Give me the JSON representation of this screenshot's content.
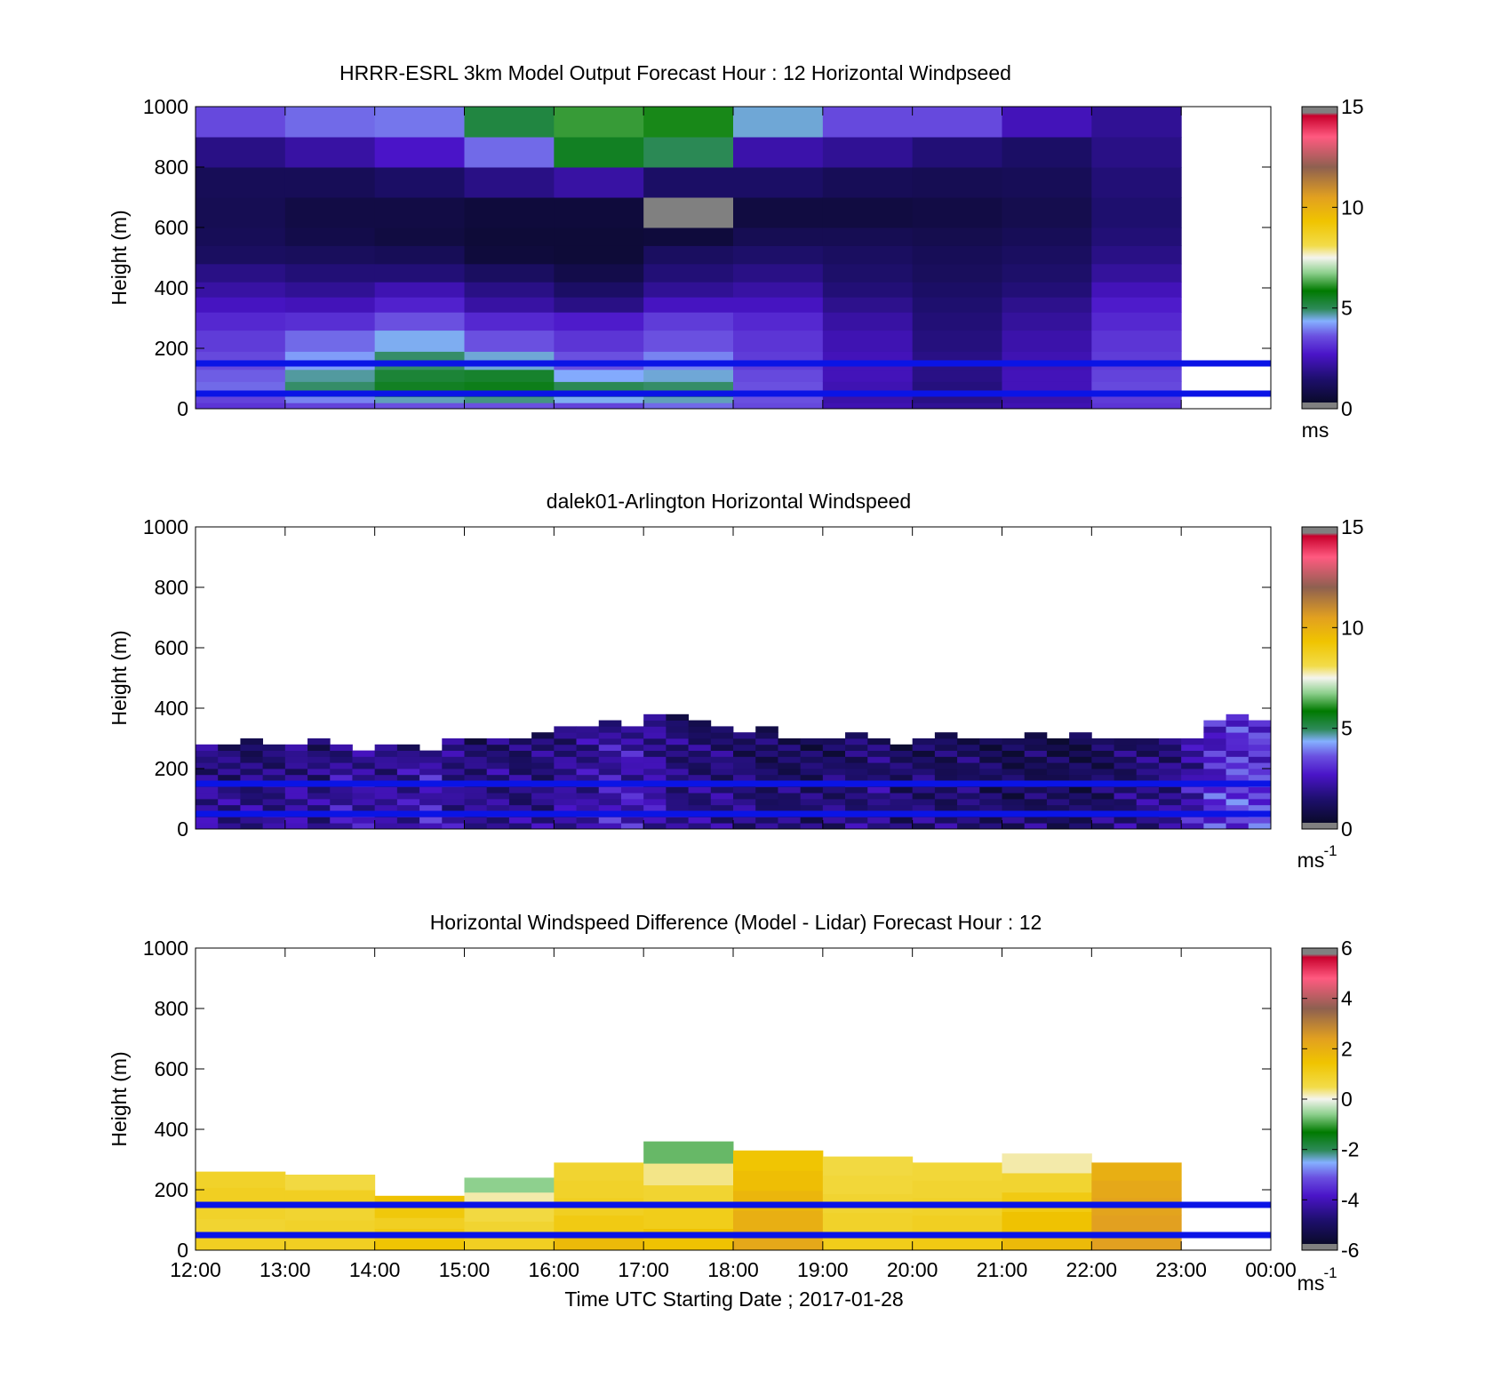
{
  "chart_data": [
    {
      "type": "heatmap",
      "title": "HRRR-ESRL 3km Model Output   Forecast Hour : 12 Horizontal Windpseed",
      "ylabel": "Height (m)",
      "xlabel": "",
      "ylim": [
        0,
        1000
      ],
      "yticks": [
        "1000",
        "800",
        "600",
        "400",
        "200",
        "0"
      ],
      "xlim": [
        "12:00",
        "00:00"
      ],
      "grid": false,
      "colorbar": {
        "min": 0,
        "max": 15,
        "ticks": [
          "15",
          "10",
          "5",
          "0"
        ],
        "unit": "ms",
        "unit_sup": ""
      },
      "reference_lines_m": [
        150,
        50
      ],
      "series": [
        {
          "time": "12:00",
          "bottom_m": [
            0,
            20,
            40,
            60,
            90,
            130,
            190,
            260,
            320,
            370,
            420,
            480,
            540,
            600,
            700,
            800,
            900
          ],
          "values": [
            3.2,
            3.4,
            3.6,
            3.8,
            3.7,
            3.5,
            3.3,
            3.0,
            2.6,
            2.2,
            1.8,
            1.2,
            1.0,
            0.9,
            1.0,
            1.8,
            3.5
          ]
        },
        {
          "time": "13:00",
          "bottom_m": [
            0,
            20,
            40,
            60,
            90,
            130,
            190,
            260,
            320,
            370,
            420,
            480,
            540,
            600,
            700,
            800,
            900
          ],
          "values": [
            3.4,
            4.0,
            4.6,
            4.9,
            4.7,
            4.2,
            3.8,
            3.1,
            2.5,
            2.0,
            1.6,
            1.1,
            0.7,
            0.6,
            1.0,
            2.2,
            3.8
          ]
        },
        {
          "time": "14:00",
          "bottom_m": [
            0,
            20,
            40,
            60,
            90,
            130,
            190,
            260,
            320,
            370,
            420,
            480,
            540,
            600,
            700,
            800,
            900
          ],
          "values": [
            3.6,
            4.6,
            5.2,
            5.5,
            5.3,
            4.9,
            4.4,
            3.6,
            2.9,
            2.4,
            1.6,
            1.0,
            0.5,
            0.6,
            1.3,
            2.7,
            3.9
          ]
        },
        {
          "time": "15:00",
          "bottom_m": [
            0,
            20,
            40,
            60,
            90,
            130,
            190,
            260,
            320,
            370,
            420,
            480,
            540,
            600,
            700,
            800,
            900
          ],
          "values": [
            3.6,
            4.8,
            5.3,
            5.6,
            5.4,
            4.5,
            3.6,
            3.0,
            2.2,
            1.8,
            1.2,
            0.4,
            0.3,
            0.4,
            1.8,
            3.8,
            5.2
          ]
        },
        {
          "time": "16:00",
          "bottom_m": [
            0,
            20,
            40,
            60,
            90,
            130,
            190,
            260,
            320,
            370,
            420,
            480,
            540,
            600,
            700,
            800,
            900
          ],
          "values": [
            3.4,
            4.4,
            4.8,
            5.0,
            4.3,
            3.6,
            3.2,
            2.8,
            1.8,
            1.3,
            0.7,
            0.3,
            0.3,
            0.4,
            2.2,
            5.5,
            6.2
          ]
        },
        {
          "time": "17:00",
          "bottom_m": [
            0,
            20,
            40,
            60,
            90,
            130,
            190,
            260,
            320,
            370,
            420,
            480,
            540,
            600,
            700,
            800,
            900
          ],
          "values": [
            3.8,
            4.6,
            5.0,
            4.9,
            4.5,
            4.0,
            3.6,
            3.3,
            2.6,
            2.0,
            1.6,
            1.2,
            0.4,
            15.8,
            1.3,
            5.0,
            6.0
          ]
        },
        {
          "time": "18:00",
          "bottom_m": [
            0,
            20,
            40,
            60,
            90,
            130,
            190,
            260,
            320,
            370,
            420,
            480,
            540,
            600,
            700,
            800,
            900
          ],
          "values": [
            3.5,
            3.6,
            3.7,
            3.6,
            3.5,
            3.3,
            3.2,
            3.0,
            2.6,
            2.2,
            1.8,
            1.4,
            0.9,
            0.5,
            1.3,
            2.3,
            4.5
          ]
        },
        {
          "time": "19:00",
          "bottom_m": [
            0,
            20,
            40,
            60,
            90,
            130,
            190,
            260,
            320,
            370,
            420,
            480,
            540,
            600,
            700,
            800,
            900
          ],
          "values": [
            2.4,
            2.3,
            2.3,
            2.4,
            2.5,
            2.5,
            2.4,
            2.2,
            1.9,
            1.6,
            1.4,
            1.2,
            0.9,
            0.5,
            1.0,
            2.0,
            3.5
          ]
        },
        {
          "time": "20:00",
          "bottom_m": [
            0,
            20,
            40,
            60,
            90,
            130,
            190,
            260,
            320,
            370,
            420,
            480,
            540,
            600,
            700,
            800,
            900
          ],
          "values": [
            2.0,
            1.8,
            1.7,
            1.7,
            1.8,
            1.8,
            1.7,
            1.6,
            1.5,
            1.3,
            1.1,
            1.0,
            0.8,
            0.6,
            0.9,
            1.6,
            3.5
          ]
        },
        {
          "time": "21:00",
          "bottom_m": [
            0,
            20,
            40,
            60,
            90,
            130,
            190,
            260,
            320,
            370,
            420,
            480,
            540,
            600,
            700,
            800,
            900
          ],
          "values": [
            2.4,
            2.3,
            2.4,
            2.5,
            2.5,
            2.4,
            2.3,
            2.1,
            1.9,
            1.6,
            1.4,
            1.2,
            1.0,
            0.8,
            1.0,
            1.3,
            2.5
          ]
        },
        {
          "time": "22:00",
          "bottom_m": [
            0,
            20,
            40,
            60,
            90,
            130,
            190,
            260,
            320,
            370,
            420,
            480,
            540,
            600,
            700,
            800,
            900
          ],
          "values": [
            3.2,
            3.3,
            3.4,
            3.5,
            3.4,
            3.3,
            3.2,
            3.0,
            2.8,
            2.5,
            2.1,
            1.8,
            1.6,
            1.5,
            1.6,
            1.8,
            2.0
          ]
        }
      ]
    },
    {
      "type": "heatmap",
      "title": "dalek01-Arlington  Horizontal Windspeed",
      "ylabel": "Height (m)",
      "xlabel": "",
      "ylim": [
        0,
        1000
      ],
      "yticks": [
        "1000",
        "800",
        "600",
        "400",
        "200",
        "0"
      ],
      "xlim": [
        "12:00",
        "00:00"
      ],
      "grid": false,
      "colorbar": {
        "min": 0,
        "max": 15,
        "ticks": [
          "15",
          "10",
          "5",
          "0"
        ],
        "unit": "ms",
        "unit_sup": "-1"
      },
      "reference_lines_m": [
        150,
        50
      ],
      "time_step_minutes": 15,
      "bin_size_m": 20,
      "top_m": [
        280,
        280,
        300,
        280,
        270,
        290,
        270,
        260,
        280,
        270,
        250,
        290,
        300,
        300,
        300,
        310,
        330,
        330,
        360,
        340,
        370,
        380,
        360,
        340,
        320,
        330,
        300,
        300,
        300,
        310,
        300,
        280,
        290,
        310,
        300,
        290,
        300,
        320,
        300,
        320,
        300,
        300,
        300,
        300,
        300,
        360,
        370,
        360
      ],
      "mean_speed": [
        2.2,
        2.0,
        1.8,
        2.1,
        2.3,
        2.0,
        2.4,
        2.6,
        2.2,
        2.4,
        2.8,
        2.3,
        1.9,
        2.1,
        1.8,
        2.0,
        2.2,
        2.4,
        2.6,
        2.8,
        2.4,
        2.0,
        1.8,
        2.0,
        1.8,
        1.6,
        1.5,
        1.6,
        1.7,
        1.8,
        1.9,
        1.6,
        1.7,
        1.5,
        1.6,
        1.5,
        1.3,
        1.4,
        1.2,
        1.3,
        1.5,
        1.7,
        1.9,
        2.1,
        2.6,
        3.2,
        3.5,
        3.6
      ]
    },
    {
      "type": "heatmap",
      "title": "Horizontal Windspeed Difference (Model - Lidar) Forecast Hour : 12",
      "ylabel": "Height (m)",
      "xlabel": "Time UTC  Starting Date ; 2017-01-28",
      "ylim": [
        0,
        1000
      ],
      "yticks": [
        "1000",
        "800",
        "600",
        "400",
        "200",
        "0"
      ],
      "xticks": [
        "12:00",
        "13:00",
        "14:00",
        "15:00",
        "16:00",
        "17:00",
        "18:00",
        "19:00",
        "20:00",
        "21:00",
        "22:00",
        "23:00",
        "00:00"
      ],
      "grid": false,
      "colorbar": {
        "min": -6,
        "max": 6,
        "ticks": [
          "6",
          "4",
          "2",
          "0",
          "-2",
          "-4",
          "-6"
        ],
        "unit": "ms",
        "unit_sup": "-1"
      },
      "reference_lines_m": [
        150,
        50
      ],
      "series": [
        {
          "time": "12:00",
          "top_m": 260,
          "values": [
            1.0,
            0.8,
            0.9,
            1.0,
            0.9
          ]
        },
        {
          "time": "13:00",
          "top_m": 250,
          "values": [
            1.0,
            0.9,
            0.8,
            1.0,
            0.6
          ]
        },
        {
          "time": "14:00",
          "top_m": 180,
          "values": [
            1.4,
            1.2,
            1.0,
            1.3,
            1.5
          ]
        },
        {
          "time": "15:00",
          "top_m": 240,
          "values": [
            1.0,
            0.8,
            0.6,
            0.2,
            -0.6
          ]
        },
        {
          "time": "16:00",
          "top_m": 290,
          "values": [
            1.7,
            1.2,
            1.0,
            0.9,
            0.8
          ]
        },
        {
          "time": "17:00",
          "top_m": 360,
          "values": [
            1.5,
            1.1,
            0.8,
            0.3,
            -0.8
          ]
        },
        {
          "time": "18:00",
          "top_m": 330,
          "values": [
            2.2,
            2.0,
            1.8,
            1.6,
            1.4
          ]
        },
        {
          "time": "19:00",
          "top_m": 310,
          "values": [
            1.1,
            0.9,
            0.8,
            0.7,
            0.6
          ]
        },
        {
          "time": "20:00",
          "top_m": 290,
          "values": [
            1.2,
            1.0,
            0.9,
            0.8,
            0.7
          ]
        },
        {
          "time": "21:00",
          "top_m": 320,
          "values": [
            1.7,
            1.5,
            1.2,
            0.8,
            0.2
          ]
        },
        {
          "time": "22:00",
          "top_m": 290,
          "values": [
            2.4,
            2.4,
            2.3,
            2.2,
            2.0
          ]
        }
      ]
    }
  ]
}
